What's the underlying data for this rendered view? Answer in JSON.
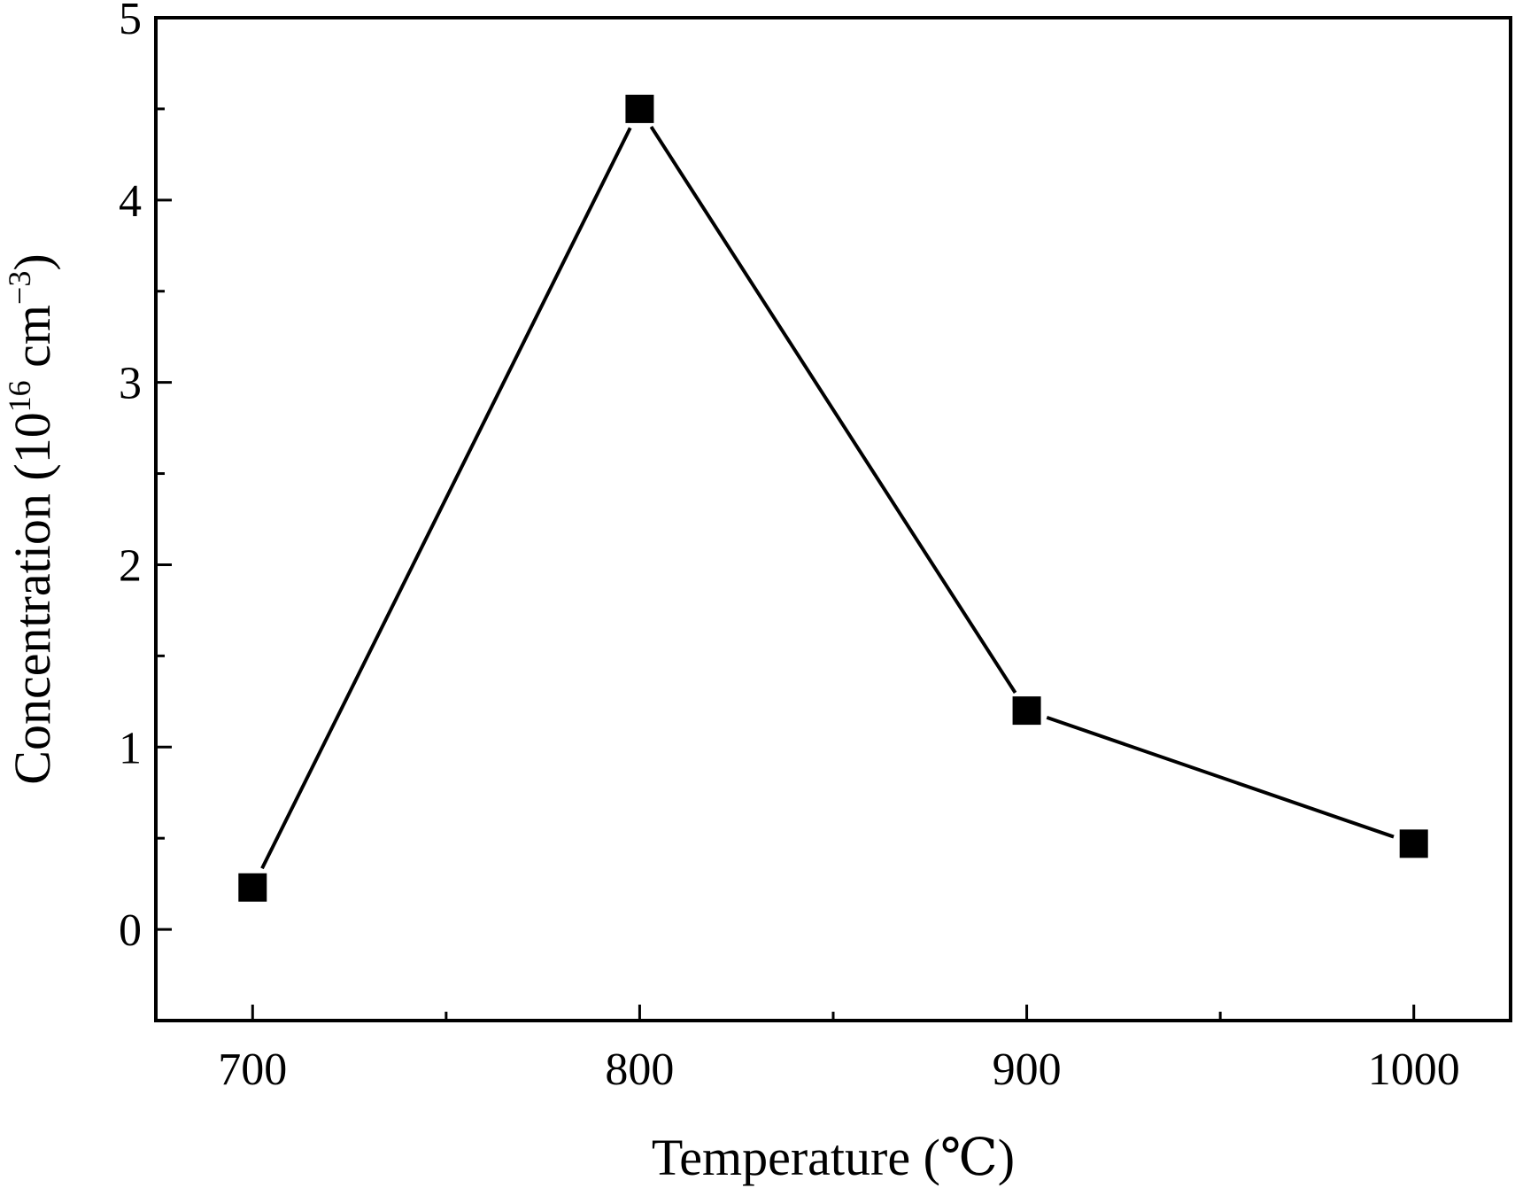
{
  "chart_data": {
    "type": "line",
    "title": "",
    "xlabel": "Temperature (℃)",
    "ylabel_main": "Concentration (10",
    "ylabel_sup": "16",
    "ylabel_unit": " cm",
    "ylabel_sup2": "−3",
    "ylabel_close": ")",
    "xlim": [
      675,
      1025
    ],
    "ylim": [
      -0.5,
      5
    ],
    "x_ticks": [
      700,
      800,
      900,
      1000
    ],
    "x_minor_ticks": [
      750,
      850,
      950
    ],
    "y_ticks": [
      0,
      1,
      2,
      3,
      4,
      5
    ],
    "y_minor_ticks": [
      0.5,
      1.5,
      2.5,
      3.5,
      4.5
    ],
    "grid": false,
    "marker": "square",
    "line_color": "#000000",
    "marker_color": "#000000",
    "series": [
      {
        "x": [
          700,
          800,
          900,
          1000
        ],
        "y": [
          0.23,
          4.5,
          1.2,
          0.47
        ]
      }
    ]
  }
}
